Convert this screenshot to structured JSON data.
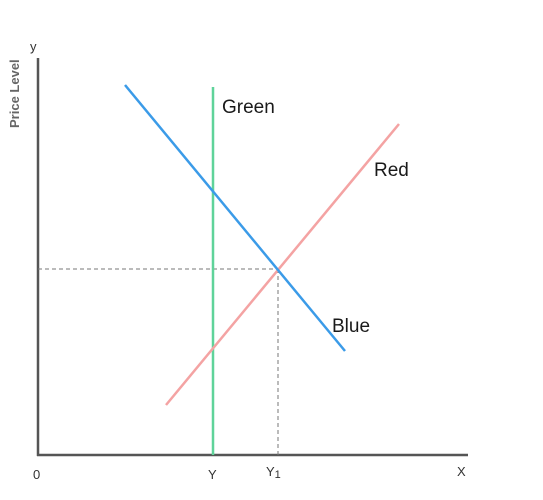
{
  "axes": {
    "y_axis_title": "Price Level",
    "y_symbol": "y",
    "x_symbol": "X",
    "origin": "0"
  },
  "ticks": {
    "y_main": "Y",
    "y1_main": "Y",
    "y1_sub": "1"
  },
  "curves": {
    "green": {
      "label": "Green",
      "color": "#5fd39a"
    },
    "red": {
      "label": "Red",
      "color": "#f4a3a3"
    },
    "blue": {
      "label": "Blue",
      "color": "#3b9be8"
    }
  }
}
